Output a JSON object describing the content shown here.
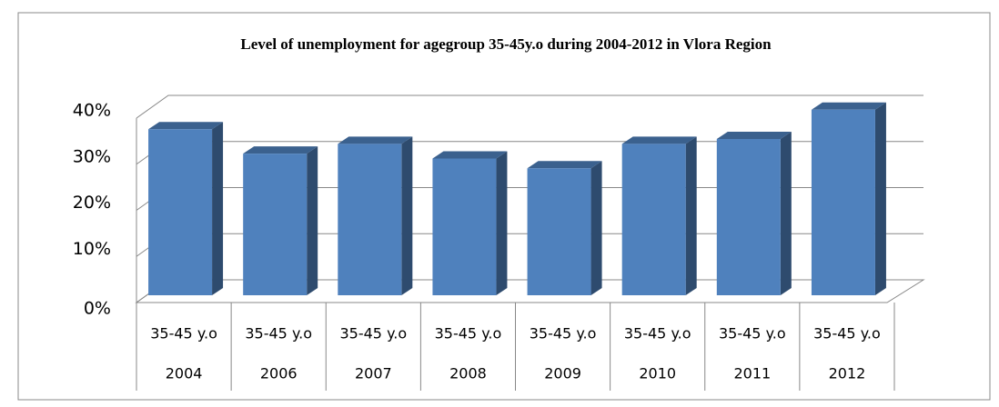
{
  "chart_data": {
    "type": "bar3d",
    "title": "Level of unemployment for agegroup 35-45y.o during 2004-2012 in Vlora Region",
    "categories": [
      "2004",
      "2006",
      "2007",
      "2008",
      "2009",
      "2010",
      "2011",
      "2012"
    ],
    "sub_categories": [
      "35-45 y.o",
      "35-45 y.o",
      "35-45 y.o",
      "35-45 y.o",
      "35-45 y.o",
      "35-45 y.o",
      "35-45 y.o",
      "35-45 y.o"
    ],
    "values": [
      34,
      29,
      31,
      28,
      26,
      31,
      32,
      38
    ],
    "color": "#4f81bd",
    "ylim": [
      0,
      40
    ],
    "yticks": [
      {
        "value": 0,
        "label": "0%"
      },
      {
        "value": 10,
        "label": "10%"
      },
      {
        "value": 20,
        "label": "20%"
      },
      {
        "value": 30,
        "label": "30%"
      },
      {
        "value": 40,
        "label": "40%"
      }
    ],
    "grid": true
  }
}
